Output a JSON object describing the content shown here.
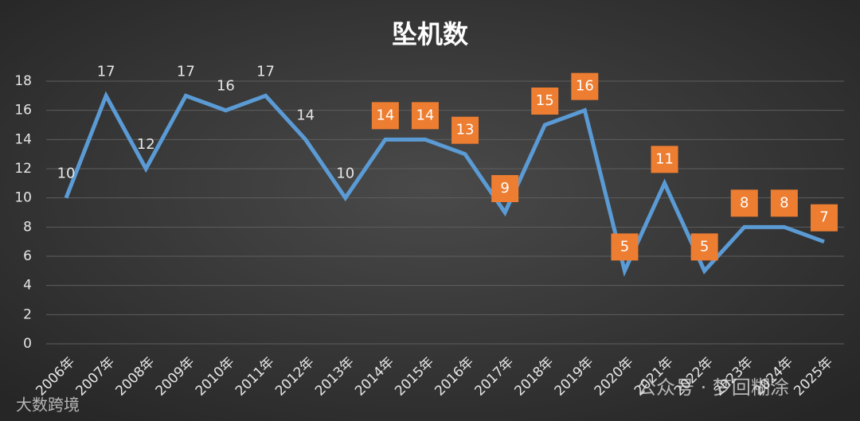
{
  "chart_data": {
    "type": "line",
    "title": "坠机数",
    "categories": [
      "2006年",
      "2007年",
      "2008年",
      "2009年",
      "2010年",
      "2011年",
      "2012年",
      "2013年",
      "2014年",
      "2015年",
      "2016年",
      "2017年",
      "2018年",
      "2019年",
      "2020年",
      "2021年",
      "2022年",
      "2023年",
      "2024年",
      "2025年"
    ],
    "series": [
      {
        "name": "坠机数",
        "color": "#5b9bd5",
        "values": [
          10,
          17,
          12,
          17,
          16,
          17,
          14,
          10,
          14,
          14,
          13,
          9,
          15,
          16,
          5,
          11,
          5,
          8,
          8,
          7
        ]
      }
    ],
    "boxed_labels": [
      false,
      false,
      false,
      false,
      false,
      false,
      false,
      false,
      true,
      true,
      true,
      true,
      true,
      true,
      true,
      true,
      true,
      true,
      true,
      true
    ],
    "label_box_color": "#ed7d31",
    "ylim": [
      0,
      18
    ],
    "yticks": [
      0,
      2,
      4,
      6,
      8,
      10,
      12,
      14,
      16,
      18
    ],
    "grid": true,
    "watermarks": [
      "大数跨境",
      "公众号 · 梦回糊涂"
    ]
  }
}
